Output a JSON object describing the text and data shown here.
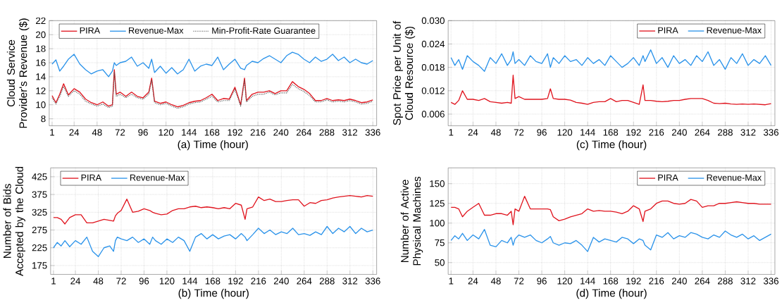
{
  "chart_data": [
    {
      "type": "line",
      "xlabel": "(a) Time (hour)",
      "ylabel": "Cloud Service Provider's Revenue ($)",
      "xlim": [
        -2,
        340
      ],
      "ylim": [
        7,
        22
      ],
      "xticks": [
        1,
        24,
        48,
        72,
        96,
        120,
        144,
        168,
        192,
        216,
        240,
        264,
        288,
        312,
        336
      ],
      "yticks": [
        8,
        10,
        12,
        14,
        16,
        18,
        20,
        22
      ],
      "grid": true,
      "legend": "top left",
      "x": [
        1,
        5,
        9,
        13,
        18,
        24,
        30,
        36,
        42,
        48,
        54,
        60,
        64,
        66,
        68,
        72,
        78,
        84,
        90,
        96,
        102,
        105,
        108,
        114,
        120,
        126,
        132,
        138,
        144,
        150,
        156,
        162,
        168,
        174,
        180,
        186,
        192,
        198,
        202,
        204,
        210,
        216,
        222,
        228,
        234,
        240,
        246,
        252,
        258,
        264,
        270,
        276,
        282,
        288,
        294,
        300,
        306,
        312,
        318,
        324,
        330,
        336
      ],
      "series": [
        {
          "name": "PIRA",
          "color": "#e0141e",
          "line_style": "solid",
          "values": [
            11.3,
            10.3,
            11.5,
            13.0,
            11.4,
            12.3,
            11.8,
            10.8,
            10.3,
            10.0,
            10.4,
            9.8,
            10.0,
            15.0,
            11.5,
            11.8,
            11.2,
            11.8,
            11.2,
            11.0,
            11.8,
            13.8,
            10.5,
            10.2,
            10.4,
            10.0,
            9.7,
            9.9,
            10.3,
            10.5,
            10.6,
            11.0,
            11.5,
            10.6,
            10.9,
            10.8,
            12.5,
            10.0,
            13.8,
            10.6,
            11.5,
            11.8,
            11.8,
            12.0,
            11.6,
            12.0,
            12.0,
            13.3,
            12.6,
            12.2,
            11.6,
            10.6,
            10.6,
            10.9,
            10.6,
            10.7,
            10.6,
            10.8,
            10.6,
            10.3,
            10.4,
            10.7
          ]
        },
        {
          "name": "Revenue-Max",
          "color": "#2b93ea",
          "line_style": "solid",
          "values": [
            15.8,
            16.4,
            14.8,
            15.5,
            16.5,
            17.2,
            15.8,
            15.0,
            14.4,
            14.8,
            15.0,
            14.0,
            14.8,
            16.0,
            15.6,
            16.0,
            16.2,
            16.8,
            15.5,
            16.0,
            15.2,
            16.5,
            14.6,
            15.5,
            14.5,
            15.3,
            14.4,
            15.0,
            16.5,
            14.8,
            15.5,
            15.8,
            15.6,
            16.8,
            15.0,
            15.8,
            16.5,
            15.2,
            15.0,
            15.6,
            16.2,
            16.0,
            16.6,
            17.0,
            16.5,
            16.0,
            17.0,
            17.5,
            17.2,
            16.5,
            16.0,
            16.8,
            16.2,
            16.5,
            17.2,
            16.3,
            16.8,
            16.0,
            16.5,
            16.0,
            15.8,
            16.3
          ]
        },
        {
          "name": "Min-Profit-Rate Guarantee",
          "color": "#555555",
          "line_style": "dotted",
          "values": [
            11.0,
            10.1,
            11.2,
            12.6,
            11.2,
            12.0,
            11.5,
            10.5,
            10.1,
            9.8,
            10.1,
            9.6,
            9.8,
            14.6,
            11.2,
            11.5,
            11.0,
            11.5,
            11.0,
            10.8,
            11.5,
            13.5,
            10.3,
            10.0,
            10.2,
            9.8,
            9.5,
            9.7,
            10.1,
            10.3,
            10.4,
            10.8,
            11.2,
            10.4,
            10.6,
            10.6,
            12.2,
            9.8,
            13.5,
            10.4,
            11.2,
            11.5,
            11.5,
            11.8,
            11.4,
            11.7,
            11.7,
            12.9,
            12.3,
            11.9,
            11.3,
            10.4,
            10.4,
            10.7,
            10.4,
            10.5,
            10.4,
            10.6,
            10.4,
            10.1,
            10.2,
            10.5
          ]
        }
      ]
    },
    {
      "type": "line",
      "xlabel": "(c) Time (hour)",
      "ylabel": "Spot Price per Unit of Cloud Resource ($)",
      "xlim": [
        -2,
        340
      ],
      "ylim": [
        0.003,
        0.03
      ],
      "xticks": [
        1,
        24,
        48,
        72,
        96,
        120,
        144,
        168,
        192,
        216,
        240,
        264,
        288,
        312,
        336
      ],
      "yticks": [
        {
          "value": 0.006,
          "label": "0.006"
        },
        {
          "value": 0.012,
          "label": "0.012"
        },
        {
          "value": 0.018,
          "label": "0.018"
        },
        {
          "value": 0.024,
          "label": "0.024"
        },
        {
          "value": 0.03,
          "label": "0.030"
        }
      ],
      "grid": true,
      "legend": "top right",
      "x": [
        1,
        5,
        9,
        13,
        18,
        24,
        30,
        36,
        42,
        48,
        54,
        60,
        64,
        66,
        68,
        72,
        78,
        84,
        90,
        96,
        102,
        105,
        108,
        114,
        120,
        126,
        132,
        138,
        144,
        150,
        156,
        162,
        168,
        174,
        180,
        186,
        192,
        198,
        202,
        204,
        210,
        216,
        222,
        228,
        234,
        240,
        246,
        252,
        258,
        264,
        270,
        276,
        282,
        288,
        294,
        300,
        306,
        312,
        318,
        324,
        330,
        336
      ],
      "series": [
        {
          "name": "PIRA",
          "color": "#e0141e",
          "line_style": "solid",
          "values": [
            0.009,
            0.0085,
            0.0095,
            0.012,
            0.0098,
            0.0098,
            0.0095,
            0.01,
            0.0092,
            0.009,
            0.0088,
            0.009,
            0.0088,
            0.016,
            0.01,
            0.0105,
            0.0098,
            0.0098,
            0.0098,
            0.0098,
            0.01,
            0.0125,
            0.01,
            0.0098,
            0.0098,
            0.0096,
            0.009,
            0.0088,
            0.0085,
            0.009,
            0.0092,
            0.0092,
            0.01,
            0.0092,
            0.0095,
            0.0095,
            0.009,
            0.0085,
            0.0135,
            0.0095,
            0.0095,
            0.0093,
            0.0092,
            0.0093,
            0.0095,
            0.0095,
            0.0098,
            0.01,
            0.01,
            0.01,
            0.0095,
            0.0088,
            0.0087,
            0.0088,
            0.0086,
            0.0085,
            0.0086,
            0.0085,
            0.0086,
            0.0085,
            0.0084,
            0.0087
          ]
        },
        {
          "name": "Revenue-Max",
          "color": "#2b93ea",
          "line_style": "solid",
          "values": [
            0.0205,
            0.0185,
            0.02,
            0.0175,
            0.021,
            0.0195,
            0.0185,
            0.017,
            0.0205,
            0.019,
            0.0215,
            0.0185,
            0.02,
            0.022,
            0.019,
            0.02,
            0.0185,
            0.021,
            0.0195,
            0.019,
            0.0215,
            0.018,
            0.0205,
            0.019,
            0.021,
            0.0195,
            0.02,
            0.0185,
            0.0205,
            0.019,
            0.02,
            0.0185,
            0.021,
            0.0195,
            0.018,
            0.019,
            0.0205,
            0.0185,
            0.021,
            0.0195,
            0.0225,
            0.019,
            0.0205,
            0.018,
            0.021,
            0.019,
            0.02,
            0.0185,
            0.021,
            0.0195,
            0.022,
            0.0185,
            0.02,
            0.0175,
            0.0205,
            0.019,
            0.0215,
            0.0185,
            0.02,
            0.019,
            0.021,
            0.0185
          ]
        }
      ]
    },
    {
      "type": "line",
      "xlabel": "(b) Time (hour)",
      "ylabel": "Number of Bids Accepted by the Cloud",
      "xlim": [
        -2,
        340
      ],
      "ylim": [
        150,
        450
      ],
      "xticks": [
        1,
        24,
        48,
        72,
        96,
        120,
        144,
        168,
        192,
        216,
        240,
        264,
        288,
        312,
        336
      ],
      "yticks": [
        175,
        225,
        275,
        325,
        375,
        425
      ],
      "grid": true,
      "legend": "top left",
      "x": [
        1,
        5,
        9,
        13,
        18,
        24,
        30,
        36,
        42,
        48,
        54,
        60,
        64,
        66,
        68,
        72,
        78,
        84,
        90,
        96,
        102,
        105,
        108,
        114,
        120,
        126,
        132,
        138,
        144,
        150,
        156,
        162,
        168,
        174,
        180,
        186,
        192,
        198,
        202,
        204,
        210,
        216,
        222,
        228,
        234,
        240,
        246,
        252,
        258,
        264,
        270,
        276,
        282,
        288,
        294,
        300,
        306,
        312,
        318,
        324,
        330,
        336
      ],
      "series": [
        {
          "name": "PIRA",
          "color": "#e0141e",
          "line_style": "solid",
          "values": [
            310,
            310,
            305,
            292,
            310,
            318,
            318,
            295,
            295,
            300,
            305,
            302,
            300,
            315,
            322,
            330,
            362,
            325,
            328,
            335,
            330,
            325,
            322,
            318,
            320,
            330,
            335,
            335,
            340,
            342,
            338,
            340,
            338,
            335,
            338,
            335,
            350,
            345,
            305,
            335,
            340,
            368,
            358,
            362,
            355,
            355,
            358,
            360,
            360,
            342,
            352,
            350,
            358,
            360,
            365,
            368,
            370,
            372,
            370,
            368,
            372,
            370
          ]
        },
        {
          "name": "Revenue-Max",
          "color": "#2b93ea",
          "line_style": "solid",
          "values": [
            225,
            240,
            230,
            245,
            228,
            245,
            235,
            255,
            215,
            200,
            225,
            230,
            215,
            245,
            255,
            250,
            245,
            255,
            240,
            250,
            235,
            255,
            245,
            235,
            250,
            240,
            255,
            245,
            215,
            255,
            265,
            250,
            262,
            250,
            258,
            262,
            250,
            265,
            255,
            245,
            262,
            280,
            265,
            275,
            262,
            270,
            265,
            280,
            262,
            265,
            260,
            270,
            262,
            285,
            265,
            280,
            270,
            285,
            265,
            280,
            270,
            275
          ]
        }
      ]
    },
    {
      "type": "line",
      "xlabel": "(d) Time (hour)",
      "ylabel": "Number of Active Physical Machines",
      "xlim": [
        -2,
        340
      ],
      "ylim": [
        35,
        170
      ],
      "xticks": [
        1,
        24,
        48,
        72,
        96,
        120,
        144,
        168,
        192,
        216,
        240,
        264,
        288,
        312,
        336
      ],
      "yticks": [
        50,
        75,
        100,
        125,
        150
      ],
      "grid": true,
      "legend": "top right",
      "x": [
        1,
        5,
        9,
        13,
        18,
        24,
        30,
        36,
        42,
        48,
        54,
        60,
        64,
        66,
        68,
        72,
        78,
        84,
        90,
        96,
        102,
        105,
        108,
        114,
        120,
        126,
        132,
        138,
        144,
        150,
        156,
        162,
        168,
        174,
        180,
        186,
        192,
        198,
        202,
        204,
        210,
        216,
        222,
        228,
        234,
        240,
        246,
        252,
        258,
        264,
        270,
        276,
        282,
        288,
        294,
        300,
        306,
        312,
        318,
        324,
        330,
        336
      ],
      "series": [
        {
          "name": "PIRA",
          "color": "#e0141e",
          "line_style": "solid",
          "values": [
            120,
            120,
            118,
            108,
            115,
            120,
            125,
            110,
            110,
            112,
            112,
            110,
            115,
            98,
            118,
            115,
            134,
            118,
            118,
            118,
            118,
            117,
            108,
            103,
            105,
            108,
            110,
            112,
            118,
            115,
            116,
            115,
            115,
            114,
            112,
            115,
            122,
            118,
            102,
            115,
            118,
            125,
            128,
            128,
            125,
            124,
            125,
            130,
            128,
            120,
            122,
            122,
            125,
            125,
            126,
            127,
            126,
            125,
            125,
            124,
            124,
            124
          ]
        },
        {
          "name": "Revenue-Max",
          "color": "#2b93ea",
          "line_style": "solid",
          "values": [
            78,
            84,
            80,
            87,
            78,
            85,
            80,
            92,
            72,
            70,
            78,
            75,
            82,
            72,
            80,
            85,
            82,
            85,
            78,
            75,
            80,
            83,
            75,
            72,
            75,
            74,
            78,
            72,
            64,
            82,
            76,
            80,
            78,
            76,
            82,
            80,
            74,
            80,
            78,
            72,
            66,
            85,
            82,
            88,
            80,
            84,
            82,
            88,
            86,
            82,
            80,
            85,
            82,
            90,
            85,
            82,
            86,
            80,
            84,
            78,
            82,
            86
          ]
        }
      ]
    }
  ]
}
